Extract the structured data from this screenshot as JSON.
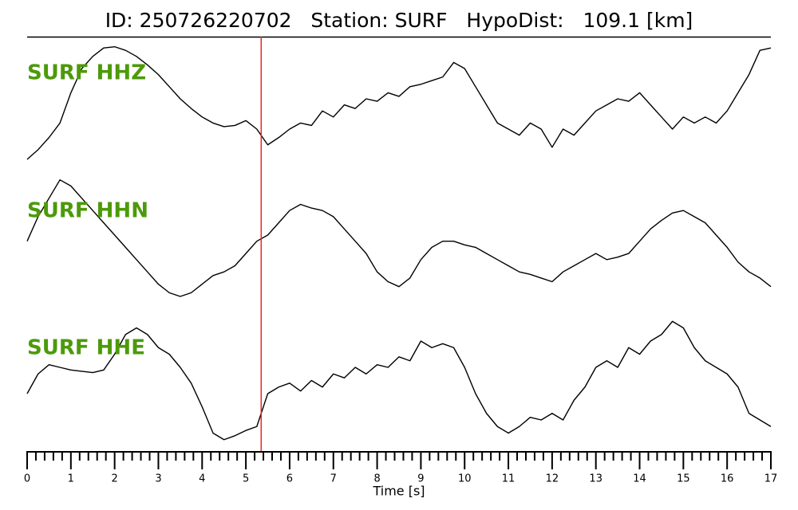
{
  "chart_data": {
    "type": "line",
    "title": "ID: 250726220702   Station: SURF   HypoDist:   109.1 [km]",
    "xlabel": "Time [s]",
    "xlim": [
      0,
      17
    ],
    "xticks": [
      0,
      1,
      2,
      3,
      4,
      5,
      6,
      7,
      8,
      9,
      10,
      11,
      12,
      13,
      14,
      15,
      16,
      17
    ],
    "xminorticks": [
      0.2,
      0.4,
      0.6,
      0.8,
      1.2,
      1.4,
      1.6,
      1.8,
      2.2,
      2.4,
      2.6,
      2.8,
      3.2,
      3.4,
      3.6,
      3.8,
      4.2,
      4.4,
      4.6,
      4.8,
      5.2,
      5.4,
      5.6,
      5.8,
      6.2,
      6.4,
      6.6,
      6.8,
      7.2,
      7.4,
      7.6,
      7.8,
      8.2,
      8.4,
      8.6,
      8.8,
      9.2,
      9.4,
      9.6,
      9.8,
      10.2,
      10.4,
      10.6,
      10.8,
      11.2,
      11.4,
      11.6,
      11.8,
      12.2,
      12.4,
      12.6,
      12.8,
      13.2,
      13.4,
      13.6,
      13.8,
      14.2,
      14.4,
      14.6,
      14.8,
      15.2,
      15.4,
      15.6,
      15.8,
      16.2,
      16.4,
      16.6,
      16.8
    ],
    "ylim": [
      0,
      100
    ],
    "vlines": [
      {
        "x": 5.35,
        "color": "#e8261c"
      }
    ],
    "label_color": "#4c9a0a",
    "x": [
      0,
      0.25,
      0.5,
      0.75,
      1,
      1.25,
      1.5,
      1.75,
      2,
      2.25,
      2.5,
      2.75,
      3,
      3.25,
      3.5,
      3.75,
      4,
      4.25,
      4.5,
      4.75,
      5,
      5.25,
      5.5,
      5.75,
      6,
      6.25,
      6.5,
      6.75,
      7,
      7.25,
      7.5,
      7.75,
      8,
      8.25,
      8.5,
      8.75,
      9,
      9.25,
      9.5,
      9.75,
      10,
      10.25,
      10.5,
      10.75,
      11,
      11.25,
      11.5,
      11.75,
      12,
      12.25,
      12.5,
      12.75,
      13,
      13.25,
      13.5,
      13.75,
      14,
      14.25,
      14.5,
      14.75,
      15,
      15.25,
      15.5,
      15.75,
      16,
      16.25,
      16.5,
      16.75,
      17
    ],
    "series": [
      {
        "name": "SURF HHZ",
        "color": "#000000",
        "values": [
          0,
          8,
          18,
          30,
          55,
          75,
          85,
          92,
          93,
          90,
          85,
          78,
          70,
          60,
          50,
          42,
          35,
          30,
          27,
          28,
          32,
          25,
          12,
          18,
          25,
          30,
          28,
          40,
          35,
          45,
          42,
          50,
          48,
          55,
          52,
          60,
          62,
          65,
          68,
          80,
          75,
          60,
          45,
          30,
          25,
          20,
          30,
          25,
          10,
          25,
          20,
          30,
          40,
          45,
          50,
          48,
          55,
          45,
          35,
          25,
          35,
          30,
          35,
          30,
          40,
          55,
          70,
          90,
          92
        ]
      },
      {
        "name": "SURF HHN",
        "color": "#000000",
        "values": [
          45,
          65,
          80,
          95,
          90,
          80,
          70,
          60,
          50,
          40,
          30,
          20,
          10,
          3,
          0,
          3,
          10,
          17,
          20,
          25,
          35,
          45,
          50,
          60,
          70,
          75,
          72,
          70,
          65,
          55,
          45,
          35,
          20,
          12,
          8,
          15,
          30,
          40,
          45,
          45,
          42,
          40,
          35,
          30,
          25,
          20,
          18,
          15,
          12,
          20,
          25,
          30,
          35,
          30,
          32,
          35,
          45,
          55,
          62,
          68,
          70,
          65,
          60,
          50,
          40,
          28,
          20,
          15,
          8
        ]
      },
      {
        "name": "SURF HHE",
        "color": "#000000",
        "values": [
          40,
          55,
          62,
          60,
          58,
          57,
          56,
          58,
          70,
          85,
          90,
          85,
          75,
          70,
          60,
          48,
          30,
          10,
          5,
          8,
          12,
          15,
          40,
          45,
          48,
          42,
          50,
          45,
          55,
          52,
          60,
          55,
          62,
          60,
          68,
          65,
          80,
          75,
          78,
          75,
          60,
          40,
          25,
          15,
          10,
          15,
          22,
          20,
          25,
          20,
          35,
          45,
          60,
          65,
          60,
          75,
          70,
          80,
          85,
          95,
          90,
          75,
          65,
          60,
          55,
          45,
          25,
          20,
          15
        ]
      }
    ]
  }
}
